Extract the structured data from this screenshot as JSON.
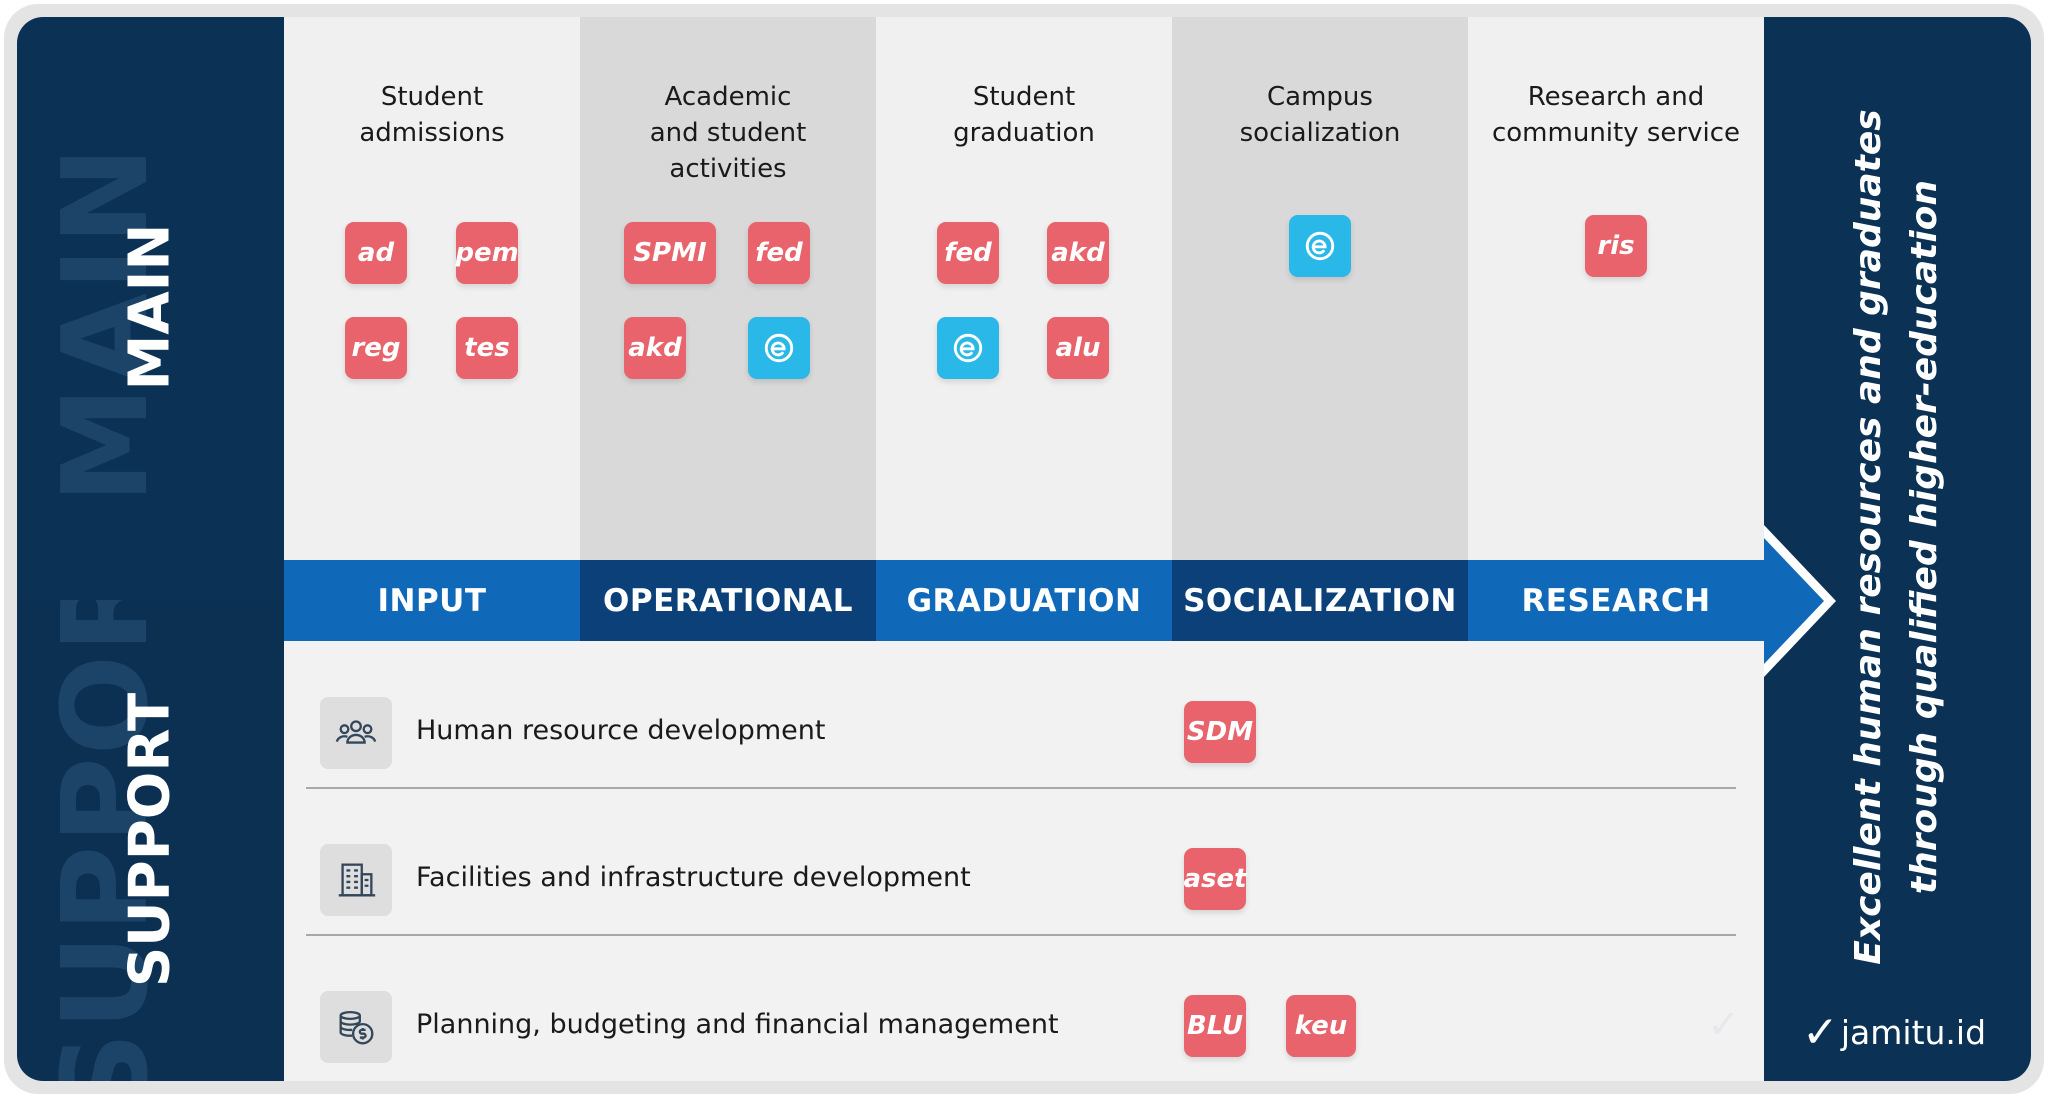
{
  "main_label": "MAIN",
  "support_label": "SUPPORT",
  "columns": [
    {
      "title": "Student admissions",
      "chips": [
        "ad",
        "pem",
        "reg",
        "tes"
      ]
    },
    {
      "title": "Academic and student activities",
      "chips": [
        "SPMI",
        "fed",
        "akd",
        "e-icon"
      ]
    },
    {
      "title": "Student graduation",
      "chips": [
        "fed",
        "akd",
        "e-icon",
        "alu"
      ]
    },
    {
      "title": "Campus socialization",
      "chips": [
        "e-icon"
      ]
    },
    {
      "title": "Research and community service",
      "chips": [
        "ris"
      ]
    }
  ],
  "stages": [
    "INPUT",
    "OPERATIONAL",
    "GRADUATION",
    "SOCIALIZATION",
    "RESEARCH"
  ],
  "support": [
    {
      "label": "Human resource development",
      "icon": "people-group-icon",
      "chips": [
        "SDM"
      ]
    },
    {
      "label": "Facilities and infrastructure development",
      "icon": "building-icon",
      "chips": [
        "aset"
      ]
    },
    {
      "label": "Planning, budgeting and financial management",
      "icon": "money-coins-icon",
      "chips": [
        "BLU",
        "keu"
      ]
    }
  ],
  "tagline_line1": "Excellent human resources and graduates",
  "tagline_line2": "through qualified higher-education",
  "brand": "jamitu.id",
  "colors": {
    "navy": "#0b3155",
    "blue": "#0f69b8",
    "dark_blue": "#0b4079",
    "chip_red": "#e8636b",
    "chip_cyan": "#2ab8e9"
  }
}
